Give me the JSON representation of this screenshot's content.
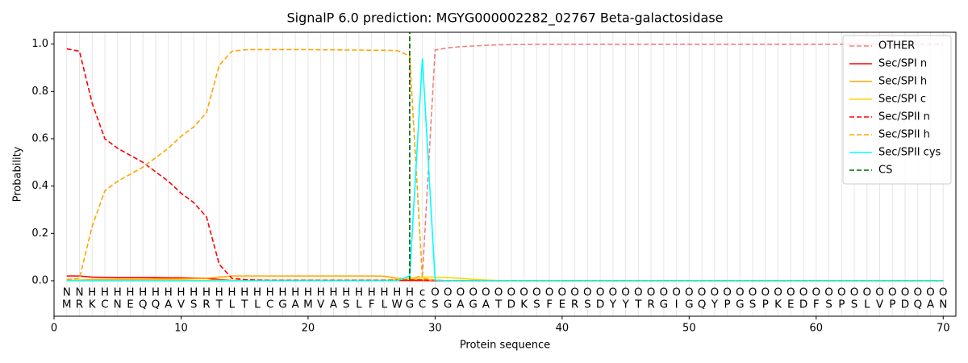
{
  "chart_data": {
    "type": "line",
    "title": "SignalP 6.0 prediction: MGYG000002282_02767 Beta-galactosidase",
    "xlabel": "Protein sequence",
    "ylabel": "Probability",
    "xlim": [
      0,
      71
    ],
    "ylim": [
      -0.15,
      1.05
    ],
    "xticks": [
      0,
      10,
      20,
      30,
      40,
      50,
      60,
      70
    ],
    "yticks": [
      {
        "value": 0,
        "label": "0.0"
      },
      {
        "value": 0.2,
        "label": "0.2"
      },
      {
        "value": 0.4,
        "label": "0.4"
      },
      {
        "value": 0.6,
        "label": "0.6"
      },
      {
        "value": 0.8,
        "label": "0.8"
      },
      {
        "value": 1.0,
        "label": "1.0"
      }
    ],
    "grid": true,
    "legend": "upper right",
    "x": [
      1,
      2,
      3,
      4,
      5,
      6,
      7,
      8,
      9,
      10,
      11,
      12,
      13,
      14,
      15,
      16,
      17,
      18,
      19,
      20,
      21,
      22,
      23,
      24,
      25,
      26,
      27,
      28,
      29,
      30,
      31,
      32,
      33,
      34,
      35,
      36,
      37,
      38,
      39,
      40,
      41,
      42,
      43,
      44,
      45,
      46,
      47,
      48,
      49,
      50,
      51,
      52,
      53,
      54,
      55,
      56,
      57,
      58,
      59,
      60,
      61,
      62,
      63,
      64,
      65,
      66,
      67,
      68,
      69,
      70
    ],
    "sequence": [
      "M",
      "R",
      "K",
      "C",
      "N",
      "E",
      "Q",
      "Q",
      "A",
      "V",
      "S",
      "R",
      "T",
      "L",
      "T",
      "L",
      "C",
      "G",
      "A",
      "M",
      "V",
      "A",
      "S",
      "L",
      "F",
      "L",
      "W",
      "G",
      "C",
      "S",
      "G",
      "A",
      "G",
      "A",
      "T",
      "D",
      "K",
      "S",
      "F",
      "E",
      "R",
      "S",
      "D",
      "Y",
      "Y",
      "T",
      "R",
      "G",
      "I",
      "G",
      "Q",
      "Y",
      "P",
      "G",
      "S",
      "P",
      "K",
      "E",
      "D",
      "F",
      "S",
      "P",
      "S",
      "L",
      "V",
      "P",
      "D",
      "Q",
      "A",
      "N"
    ],
    "annotations": [
      "N",
      "N",
      "H",
      "H",
      "H",
      "H",
      "H",
      "H",
      "H",
      "H",
      "H",
      "H",
      "H",
      "H",
      "H",
      "H",
      "H",
      "H",
      "H",
      "H",
      "H",
      "H",
      "H",
      "H",
      "H",
      "H",
      "H",
      "H",
      "c",
      "O",
      "O",
      "O",
      "O",
      "O",
      "O",
      "O",
      "O",
      "O",
      "O",
      "O",
      "O",
      "O",
      "O",
      "O",
      "O",
      "O",
      "O",
      "O",
      "O",
      "O",
      "O",
      "O",
      "O",
      "O",
      "O",
      "O",
      "O",
      "O",
      "O",
      "O",
      "O",
      "O",
      "O",
      "O",
      "O",
      "O",
      "O",
      "O",
      "O",
      "O"
    ],
    "annotation_colors": {
      "N": "#ff0000",
      "H": "#ffa500",
      "c": "#00e5e5",
      "O": "#808080"
    },
    "series": [
      {
        "name": "OTHER",
        "color": "#f08080",
        "linestyle": "dashed",
        "values": [
          0,
          0,
          0,
          0,
          0,
          0,
          0,
          0,
          0,
          0,
          0,
          0,
          0,
          0,
          0,
          0,
          0,
          0,
          0,
          0,
          0,
          0,
          0,
          0,
          0,
          0,
          0.005,
          0.01,
          0.02,
          0.975,
          0.984,
          0.989,
          0.992,
          0.995,
          0.997,
          0.998,
          0.998,
          0.999,
          0.999,
          0.999,
          0.999,
          0.999,
          0.999,
          0.999,
          0.999,
          0.999,
          0.999,
          0.999,
          0.999,
          0.999,
          0.999,
          0.999,
          0.999,
          0.999,
          0.999,
          0.999,
          0.999,
          0.999,
          0.999,
          0.999,
          0.999,
          0.999,
          0.999,
          0.999,
          0.999,
          0.999,
          0.999,
          0.999,
          0.999,
          0.999
        ]
      },
      {
        "name": "Sec/SPI n",
        "color": "#ff0000",
        "linestyle": "solid",
        "values": [
          0.02,
          0.02,
          0.015,
          0.014,
          0.013,
          0.013,
          0.013,
          0.013,
          0.012,
          0.012,
          0.011,
          0.01,
          0.005,
          0.002,
          0.001,
          0.001,
          0.001,
          0.001,
          0.001,
          0.001,
          0.001,
          0.001,
          0.001,
          0.001,
          0.001,
          0.001,
          0.001,
          0.001,
          0.001,
          0,
          0,
          0,
          0,
          0,
          0,
          0,
          0,
          0,
          0,
          0,
          0,
          0,
          0,
          0,
          0,
          0,
          0,
          0,
          0,
          0,
          0,
          0,
          0,
          0,
          0,
          0,
          0,
          0,
          0,
          0,
          0,
          0,
          0,
          0,
          0,
          0,
          0,
          0,
          0,
          0
        ]
      },
      {
        "name": "Sec/SPI h",
        "color": "#ffa500",
        "linestyle": "solid",
        "values": [
          0.002,
          0.003,
          0.005,
          0.005,
          0.006,
          0.006,
          0.006,
          0.007,
          0.007,
          0.008,
          0.009,
          0.01,
          0.015,
          0.02,
          0.02,
          0.02,
          0.02,
          0.02,
          0.02,
          0.02,
          0.02,
          0.02,
          0.02,
          0.02,
          0.02,
          0.019,
          0.01,
          0.008,
          0.005,
          0.002,
          0,
          0,
          0,
          0,
          0,
          0,
          0,
          0,
          0,
          0,
          0,
          0,
          0,
          0,
          0,
          0,
          0,
          0,
          0,
          0,
          0,
          0,
          0,
          0,
          0,
          0,
          0,
          0,
          0,
          0,
          0,
          0,
          0,
          0,
          0,
          0,
          0,
          0,
          0,
          0
        ]
      },
      {
        "name": "Sec/SPI c",
        "color": "#ffd700",
        "linestyle": "solid",
        "values": [
          0.002,
          0.002,
          0.002,
          0.002,
          0.002,
          0.002,
          0.002,
          0.002,
          0.002,
          0.002,
          0.002,
          0.002,
          0.002,
          0.002,
          0.002,
          0.002,
          0.002,
          0.002,
          0.002,
          0.002,
          0.002,
          0.002,
          0.002,
          0.002,
          0.002,
          0.002,
          0.005,
          0.01,
          0.015,
          0.015,
          0.013,
          0.01,
          0.006,
          0.003,
          0.001,
          0,
          0,
          0,
          0,
          0,
          0,
          0,
          0,
          0,
          0,
          0,
          0,
          0,
          0,
          0,
          0,
          0,
          0,
          0,
          0,
          0,
          0,
          0,
          0,
          0,
          0,
          0,
          0,
          0,
          0,
          0,
          0,
          0,
          0,
          0
        ]
      },
      {
        "name": "Sec/SPII n",
        "color": "#ff0000",
        "linestyle": "dashed",
        "values": [
          0.98,
          0.97,
          0.75,
          0.6,
          0.56,
          0.53,
          0.5,
          0.46,
          0.42,
          0.37,
          0.33,
          0.27,
          0.07,
          0.01,
          0.005,
          0.003,
          0.002,
          0.002,
          0.002,
          0.002,
          0.002,
          0.002,
          0.002,
          0.002,
          0.002,
          0.002,
          0.002,
          0.003,
          0.003,
          0.001,
          0,
          0,
          0,
          0,
          0,
          0,
          0,
          0,
          0,
          0,
          0,
          0,
          0,
          0,
          0,
          0,
          0,
          0,
          0,
          0,
          0,
          0,
          0,
          0,
          0,
          0,
          0,
          0,
          0,
          0,
          0,
          0,
          0,
          0,
          0,
          0,
          0,
          0,
          0,
          0
        ]
      },
      {
        "name": "Sec/SPII h",
        "color": "#ffa500",
        "linestyle": "dashed",
        "values": [
          0.005,
          0.01,
          0.23,
          0.38,
          0.42,
          0.45,
          0.48,
          0.52,
          0.56,
          0.61,
          0.65,
          0.71,
          0.91,
          0.97,
          0.976,
          0.977,
          0.977,
          0.977,
          0.977,
          0.977,
          0.976,
          0.976,
          0.975,
          0.975,
          0.974,
          0.974,
          0.973,
          0.95,
          0.01,
          0.003,
          0,
          0,
          0,
          0,
          0,
          0,
          0,
          0,
          0,
          0,
          0,
          0,
          0,
          0,
          0,
          0,
          0,
          0,
          0,
          0,
          0,
          0,
          0,
          0,
          0,
          0,
          0,
          0,
          0,
          0,
          0,
          0,
          0,
          0,
          0,
          0,
          0,
          0,
          0,
          0
        ]
      },
      {
        "name": "Sec/SPII cys",
        "color": "#00ffff",
        "linestyle": "solid",
        "values": [
          0,
          0,
          0,
          0,
          0,
          0,
          0,
          0,
          0,
          0,
          0,
          0,
          0,
          0,
          0,
          0,
          0,
          0,
          0,
          0,
          0,
          0,
          0,
          0,
          0,
          0,
          0,
          0.02,
          0.94,
          0.003,
          0,
          0,
          0,
          0,
          0,
          0,
          0,
          0,
          0,
          0,
          0,
          0,
          0,
          0,
          0,
          0,
          0,
          0,
          0,
          0,
          0,
          0,
          0,
          0,
          0,
          0,
          0,
          0,
          0,
          0,
          0,
          0,
          0,
          0,
          0,
          0,
          0,
          0,
          0,
          0
        ]
      }
    ],
    "cs": {
      "name": "CS",
      "color": "#006400",
      "linestyle": "dashed",
      "position": 28
    }
  }
}
